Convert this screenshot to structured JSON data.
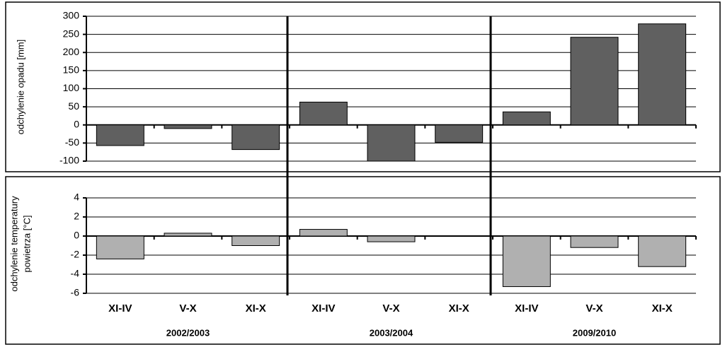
{
  "chart_data": [
    {
      "type": "bar",
      "ylabel": [
        "odchylenie opadu [mm]"
      ],
      "values": [
        -57,
        -10,
        -68,
        63,
        -100,
        -48,
        36,
        242,
        279
      ],
      "color": "#606060",
      "ylim": [
        -100,
        300
      ],
      "yticks": [
        -100,
        -50,
        0,
        50,
        100,
        150,
        200,
        250,
        300
      ],
      "grid": true
    },
    {
      "type": "bar",
      "ylabel": [
        "odchylenie temperatury",
        "powietrza [°C]"
      ],
      "categories": [
        "XI-IV",
        "V-X",
        "XI-X",
        "XI-IV",
        "V-X",
        "XI-X",
        "XI-IV",
        "V-X",
        "XI-X"
      ],
      "groups": [
        "2002/2003",
        "2003/2004",
        "2009/2010"
      ],
      "values": [
        -2.4,
        0.3,
        -1.0,
        0.7,
        -0.6,
        0,
        -5.3,
        -1.2,
        -3.2
      ],
      "color": "#b0b0b0",
      "ylim": [
        -6,
        4
      ],
      "yticks": [
        -6,
        -4,
        -2,
        0,
        2,
        4
      ],
      "grid": true
    }
  ]
}
